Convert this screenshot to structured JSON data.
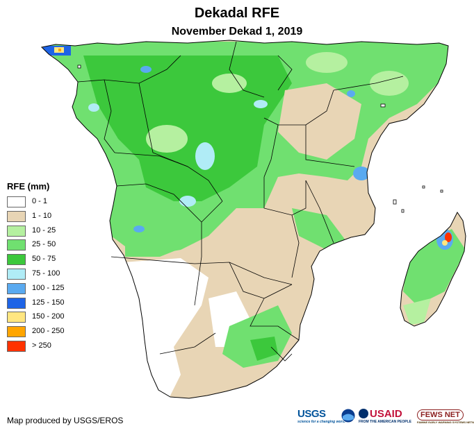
{
  "title": "Dekadal RFE",
  "subtitle": "November Dekad 1, 2019",
  "legend": {
    "title": "RFE (mm)",
    "items": [
      {
        "label": "0 - 1",
        "color": "#ffffff"
      },
      {
        "label": "1 - 10",
        "color": "#e8d5b5"
      },
      {
        "label": "10 - 25",
        "color": "#b5f0a0"
      },
      {
        "label": "25 - 50",
        "color": "#70e070"
      },
      {
        "label": "50 - 75",
        "color": "#3cc83c"
      },
      {
        "label": "75 - 100",
        "color": "#b0ecf6"
      },
      {
        "label": "100 - 125",
        "color": "#5aaaf0"
      },
      {
        "label": "125 - 150",
        "color": "#1e64e6"
      },
      {
        "label": "150 - 200",
        "color": "#ffe680"
      },
      {
        "label": "200 - 250",
        "color": "#ffa500"
      },
      {
        "label": "> 250",
        "color": "#ff3200"
      }
    ]
  },
  "credit": "Map produced by USGS/EROS",
  "logos": {
    "usgs": "USGS",
    "usgs_tagline": "science for a changing world",
    "usaid": "USAID",
    "usaid_tagline": "FROM THE AMERICAN PEOPLE",
    "fewsnet": "FEWS NET",
    "fewsnet_tagline": "FAMINE EARLY WARNING SYSTEMS NETWORK"
  },
  "colors": {
    "land_white": "#ffffff",
    "land_tan": "#e8d5b5",
    "light_green": "#b5f0a0",
    "green": "#70e070",
    "dark_green": "#3cc83c",
    "cyan": "#b0ecf6",
    "blue": "#5aaaf0",
    "dark_blue": "#1e64e6",
    "border": "#000000"
  }
}
